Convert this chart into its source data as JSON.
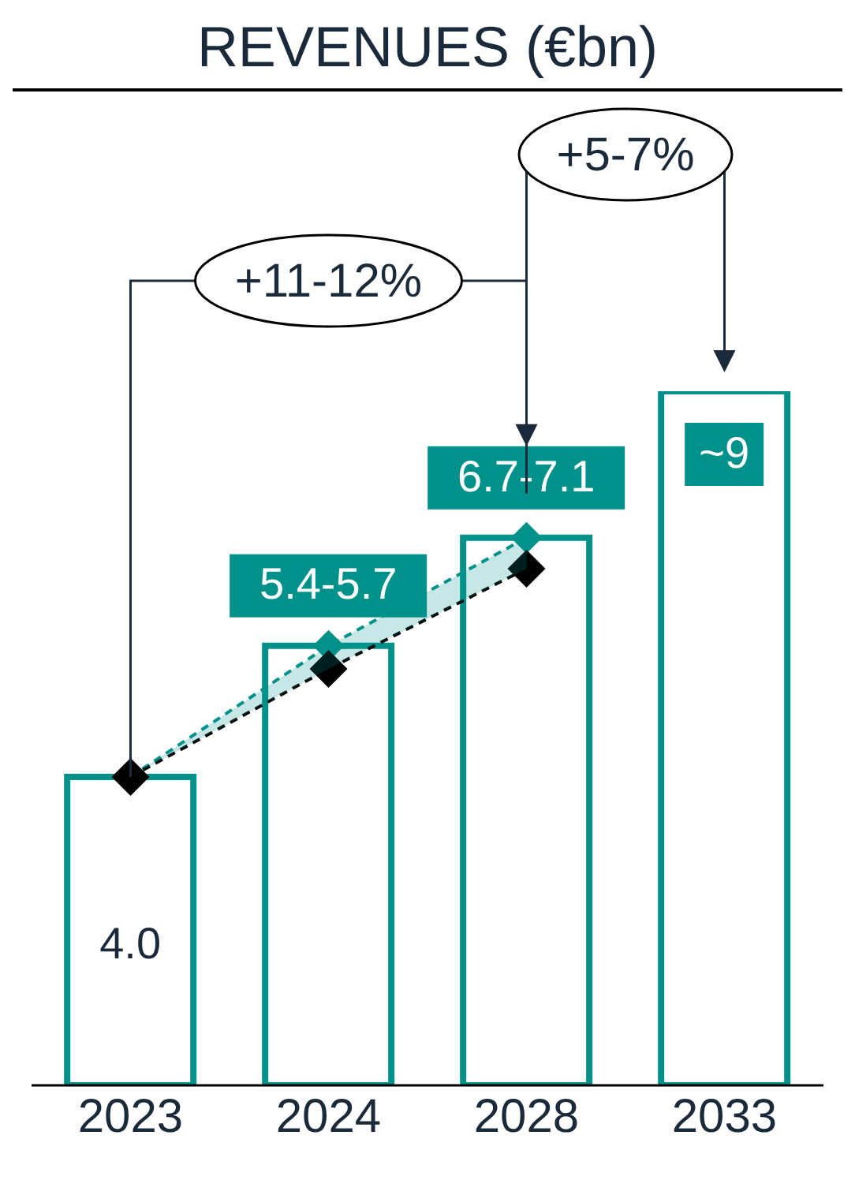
{
  "chart_data": {
    "type": "bar",
    "title": "REVENUES (€bn)",
    "categories": [
      "2023",
      "2024",
      "2028",
      "2033"
    ],
    "series": [
      {
        "color": "#00918b",
        "values": [
          4.0,
          5.7,
          7.1,
          9
        ],
        "value_labels": [
          "4.0",
          "5.4-5.7",
          "6.7-7.1",
          "~9"
        ]
      },
      {
        "type": "line",
        "color": "#00918b",
        "line_style": "dashed",
        "values": [
          4.0,
          5.7,
          7.1,
          null
        ],
        "lower": [
          4.0,
          5.4,
          6.7,
          null
        ],
        "upper": [
          4.0,
          5.7,
          7.1,
          null
        ]
      },
      {
        "type": "line",
        "color": "#000000",
        "line_style": "dashed",
        "values": [
          4.0,
          5.4,
          6.7,
          null
        ]
      }
    ],
    "annotations": [
      "+11-12%",
      "+5-7%"
    ],
    "marker": "diamond",
    "tick_labels": "x",
    "grid": false,
    "legend": false
  }
}
